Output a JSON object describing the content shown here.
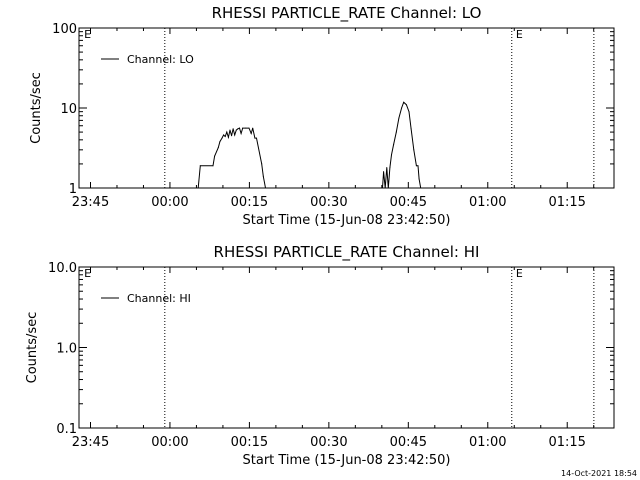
{
  "footer": {
    "timestamp": "14-Oct-2021 18:54"
  },
  "chart_data": [
    {
      "type": "line",
      "title": "RHESSI PARTICLE_RATE Channel: LO",
      "xlabel": "Start Time (15-Jun-08 23:42:50)",
      "ylabel": "Counts/sec",
      "y_scale": "log",
      "ylim": [
        1,
        100
      ],
      "yticks": [
        {
          "value": 1,
          "label": "1"
        },
        {
          "value": 10,
          "label": "10"
        },
        {
          "value": 100,
          "label": "100"
        }
      ],
      "x_units": "minutes since 23:42:50",
      "xlim": [
        0,
        101
      ],
      "xticks": [
        {
          "value": 2.17,
          "label": "23:45"
        },
        {
          "value": 17.17,
          "label": "00:00"
        },
        {
          "value": 32.17,
          "label": "00:15"
        },
        {
          "value": 47.17,
          "label": "00:30"
        },
        {
          "value": 62.17,
          "label": "00:45"
        },
        {
          "value": 77.17,
          "label": "01:00"
        },
        {
          "value": 92.17,
          "label": "01:15"
        }
      ],
      "vlines": [
        16.2,
        81.7,
        97.2
      ],
      "markers": [
        {
          "x": 0.4,
          "label": "E"
        },
        {
          "x": 81.9,
          "label": "E"
        }
      ],
      "legend": {
        "position": "top-left",
        "entries": [
          "Channel: LO"
        ]
      },
      "series": [
        {
          "name": "Channel: LO",
          "x": [
            22.5,
            22.9,
            25.3,
            25.6,
            26.3,
            26.6,
            27.0,
            27.3,
            27.6,
            27.9,
            28.2,
            28.5,
            28.8,
            29.1,
            29.4,
            29.7,
            30.0,
            30.3,
            30.6,
            30.9,
            31.5,
            32.1,
            32.5,
            32.8,
            33.2,
            33.5,
            34.5,
            34.8,
            35.2,
            57.3,
            57.5,
            57.8,
            58.1,
            58.4,
            58.7,
            59.0,
            59.4,
            59.9,
            60.4,
            60.9,
            61.3,
            61.8,
            62.3,
            62.7,
            63.2,
            63.7,
            64.0,
            64.2,
            64.5
          ],
          "y": [
            1,
            1.9,
            1.9,
            2.5,
            3.2,
            3.8,
            4.2,
            4.6,
            4.4,
            5.0,
            4.3,
            5.3,
            4.5,
            5.5,
            4.6,
            5.3,
            5.5,
            5.6,
            4.8,
            5.6,
            5.6,
            5.6,
            4.8,
            5.6,
            4.2,
            4.2,
            2.0,
            1.4,
            1,
            1,
            1.6,
            1,
            1.8,
            1,
            1.8,
            2.6,
            3.5,
            5.0,
            7.5,
            10.0,
            11.8,
            11.0,
            9.0,
            5.5,
            3.0,
            1.9,
            1.9,
            1.3,
            1
          ]
        }
      ]
    },
    {
      "type": "line",
      "title": "RHESSI PARTICLE_RATE Channel: HI",
      "xlabel": "Start Time (15-Jun-08 23:42:50)",
      "ylabel": "Counts/sec",
      "y_scale": "log",
      "ylim": [
        0.1,
        10
      ],
      "yticks": [
        {
          "value": 0.1,
          "label": "0.1"
        },
        {
          "value": 1,
          "label": "1.0"
        },
        {
          "value": 10,
          "label": "10.0"
        }
      ],
      "x_units": "minutes since 23:42:50",
      "xlim": [
        0,
        101
      ],
      "xticks": [
        {
          "value": 2.17,
          "label": "23:45"
        },
        {
          "value": 17.17,
          "label": "00:00"
        },
        {
          "value": 32.17,
          "label": "00:15"
        },
        {
          "value": 47.17,
          "label": "00:30"
        },
        {
          "value": 62.17,
          "label": "00:45"
        },
        {
          "value": 77.17,
          "label": "01:00"
        },
        {
          "value": 92.17,
          "label": "01:15"
        }
      ],
      "vlines": [
        16.2,
        81.7,
        97.2
      ],
      "markers": [
        {
          "x": 0.4,
          "label": "E"
        },
        {
          "x": 81.9,
          "label": "E"
        }
      ],
      "legend": {
        "position": "top-left",
        "entries": [
          "Channel: HI"
        ]
      },
      "series": [
        {
          "name": "Channel: HI",
          "x": [],
          "y": []
        }
      ]
    }
  ]
}
